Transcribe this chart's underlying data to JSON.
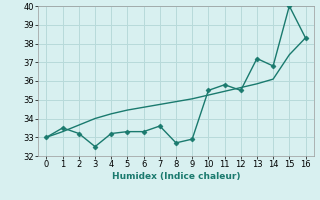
{
  "x": [
    0,
    1,
    2,
    3,
    4,
    5,
    6,
    7,
    8,
    9,
    10,
    11,
    12,
    13,
    14,
    15,
    16
  ],
  "y_jagged": [
    33.0,
    33.5,
    33.2,
    32.5,
    33.2,
    33.3,
    33.3,
    33.6,
    32.7,
    32.9,
    35.5,
    35.8,
    35.5,
    37.2,
    36.8,
    40.0,
    38.3
  ],
  "y_trend": [
    33.0,
    33.3,
    33.65,
    34.0,
    34.25,
    34.45,
    34.6,
    34.75,
    34.9,
    35.05,
    35.25,
    35.45,
    35.65,
    35.85,
    36.1,
    37.4,
    38.3
  ],
  "line_color": "#1a7a6e",
  "background_color": "#d8f0f0",
  "grid_color": "#b8dada",
  "xlabel": "Humidex (Indice chaleur)",
  "xlim": [
    -0.5,
    16.5
  ],
  "ylim": [
    32,
    40
  ],
  "yticks": [
    32,
    33,
    34,
    35,
    36,
    37,
    38,
    39,
    40
  ],
  "xticks": [
    0,
    1,
    2,
    3,
    4,
    5,
    6,
    7,
    8,
    9,
    10,
    11,
    12,
    13,
    14,
    15,
    16
  ],
  "marker": "D",
  "marker_size": 2.5,
  "linewidth": 1.0,
  "tick_fontsize": 6.0,
  "xlabel_fontsize": 6.5
}
